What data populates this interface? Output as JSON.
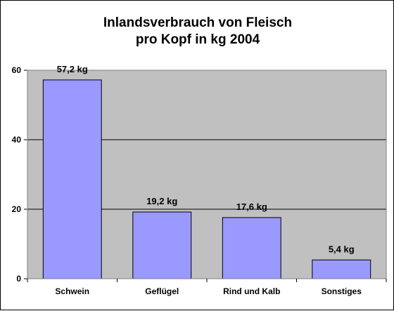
{
  "chart_data": {
    "type": "bar",
    "title_lines": [
      "Inlandsverbrauch von Fleisch",
      "pro Kopf in kg 2004"
    ],
    "categories": [
      "Schwein",
      "Geflügel",
      "Rind und Kalb",
      "Sonstiges"
    ],
    "values": [
      57.2,
      19.2,
      17.6,
      5.4
    ],
    "data_labels": [
      "57,2 kg",
      "19,2 kg",
      "17,6 kg",
      "5,4 kg"
    ],
    "ylim": [
      0,
      60
    ],
    "yticks": [
      0,
      20,
      40,
      60
    ],
    "grid": true,
    "legend": "none",
    "colors": {
      "bar_fill": "#9999ff",
      "bar_stroke": "#000000",
      "plot_background": "#c0c0c0",
      "gridline": "#000000"
    }
  }
}
